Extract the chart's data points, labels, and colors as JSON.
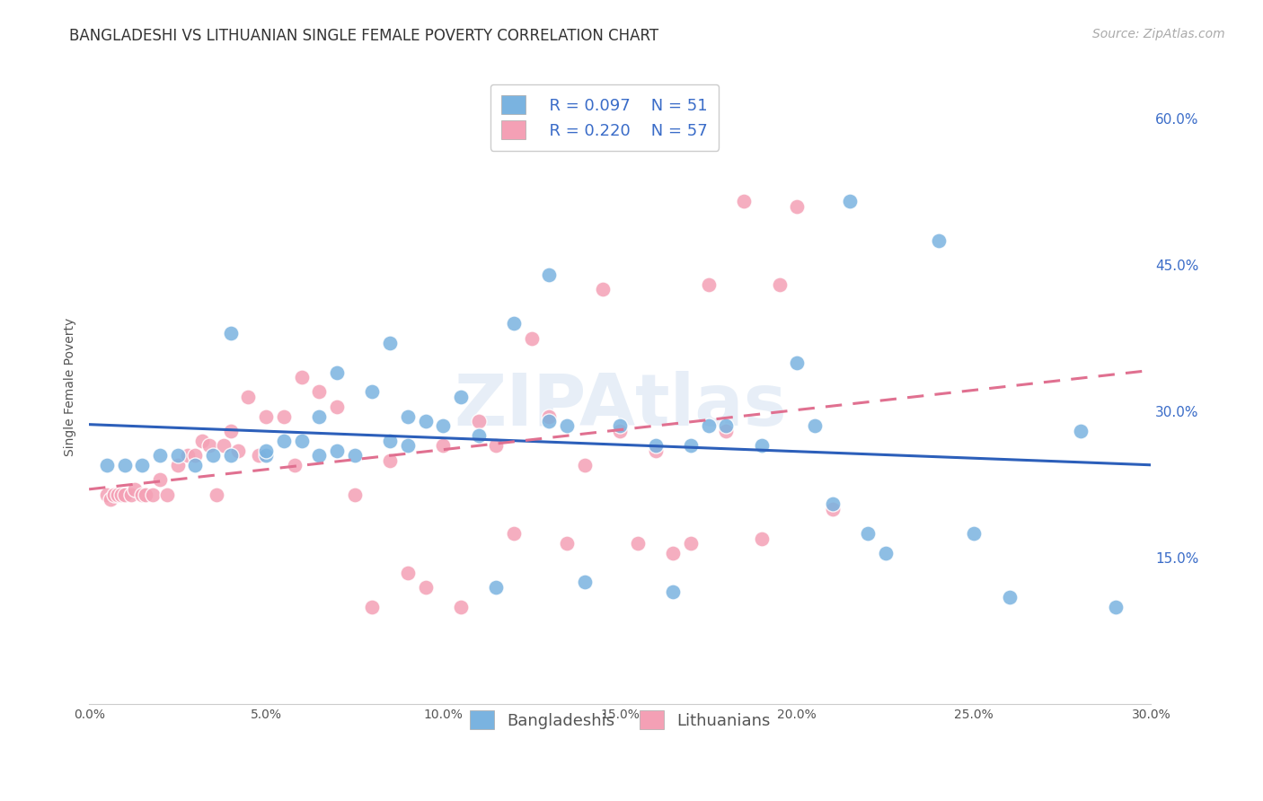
{
  "title": "BANGLADESHI VS LITHUANIAN SINGLE FEMALE POVERTY CORRELATION CHART",
  "source": "Source: ZipAtlas.com",
  "ylabel_label": "Single Female Poverty",
  "x_min": 0.0,
  "x_max": 0.3,
  "y_min": 0.0,
  "y_max": 0.65,
  "x_ticks": [
    0.0,
    0.05,
    0.1,
    0.15,
    0.2,
    0.25,
    0.3
  ],
  "x_tick_labels": [
    "0.0%",
    "5.0%",
    "10.0%",
    "15.0%",
    "20.0%",
    "25.0%",
    "30.0%"
  ],
  "y_ticks": [
    0.15,
    0.3,
    0.45,
    0.6
  ],
  "y_tick_labels": [
    "15.0%",
    "30.0%",
    "45.0%",
    "60.0%"
  ],
  "blue_color": "#7ab3e0",
  "pink_color": "#f4a0b5",
  "blue_line_color": "#2c5fba",
  "pink_line_color": "#e07090",
  "watermark": "ZIPAtlas",
  "legend_R_blue": "R = 0.097",
  "legend_N_blue": "N = 51",
  "legend_R_pink": "R = 0.220",
  "legend_N_pink": "N = 57",
  "blue_scatter_x": [
    0.005,
    0.01,
    0.015,
    0.02,
    0.025,
    0.03,
    0.035,
    0.04,
    0.04,
    0.05,
    0.05,
    0.055,
    0.06,
    0.065,
    0.065,
    0.07,
    0.07,
    0.075,
    0.08,
    0.085,
    0.085,
    0.09,
    0.09,
    0.095,
    0.1,
    0.105,
    0.11,
    0.115,
    0.12,
    0.13,
    0.135,
    0.14,
    0.15,
    0.16,
    0.165,
    0.17,
    0.175,
    0.18,
    0.19,
    0.2,
    0.205,
    0.21,
    0.215,
    0.22,
    0.225,
    0.13,
    0.24,
    0.25,
    0.26,
    0.28,
    0.29
  ],
  "blue_scatter_y": [
    0.245,
    0.245,
    0.245,
    0.255,
    0.255,
    0.245,
    0.255,
    0.38,
    0.255,
    0.255,
    0.26,
    0.27,
    0.27,
    0.255,
    0.295,
    0.26,
    0.34,
    0.255,
    0.32,
    0.37,
    0.27,
    0.265,
    0.295,
    0.29,
    0.285,
    0.315,
    0.275,
    0.12,
    0.39,
    0.29,
    0.285,
    0.125,
    0.285,
    0.265,
    0.115,
    0.265,
    0.285,
    0.285,
    0.265,
    0.35,
    0.285,
    0.205,
    0.515,
    0.175,
    0.155,
    0.44,
    0.475,
    0.175,
    0.11,
    0.28,
    0.1
  ],
  "pink_scatter_x": [
    0.005,
    0.006,
    0.007,
    0.008,
    0.009,
    0.01,
    0.012,
    0.013,
    0.015,
    0.016,
    0.018,
    0.02,
    0.022,
    0.025,
    0.028,
    0.03,
    0.032,
    0.034,
    0.036,
    0.038,
    0.04,
    0.042,
    0.045,
    0.048,
    0.05,
    0.055,
    0.058,
    0.06,
    0.065,
    0.07,
    0.075,
    0.08,
    0.085,
    0.09,
    0.095,
    0.1,
    0.105,
    0.11,
    0.115,
    0.12,
    0.125,
    0.13,
    0.135,
    0.14,
    0.145,
    0.15,
    0.155,
    0.16,
    0.165,
    0.17,
    0.175,
    0.18,
    0.185,
    0.19,
    0.195,
    0.2,
    0.21
  ],
  "pink_scatter_y": [
    0.215,
    0.21,
    0.215,
    0.215,
    0.215,
    0.215,
    0.215,
    0.22,
    0.215,
    0.215,
    0.215,
    0.23,
    0.215,
    0.245,
    0.255,
    0.255,
    0.27,
    0.265,
    0.215,
    0.265,
    0.28,
    0.26,
    0.315,
    0.255,
    0.295,
    0.295,
    0.245,
    0.335,
    0.32,
    0.305,
    0.215,
    0.1,
    0.25,
    0.135,
    0.12,
    0.265,
    0.1,
    0.29,
    0.265,
    0.175,
    0.375,
    0.295,
    0.165,
    0.245,
    0.425,
    0.28,
    0.165,
    0.26,
    0.155,
    0.165,
    0.43,
    0.28,
    0.515,
    0.17,
    0.43,
    0.51,
    0.2
  ],
  "background_color": "#ffffff",
  "grid_color": "#dddddd",
  "title_fontsize": 12,
  "axis_label_fontsize": 10,
  "tick_fontsize": 10,
  "legend_fontsize": 13,
  "source_fontsize": 10
}
